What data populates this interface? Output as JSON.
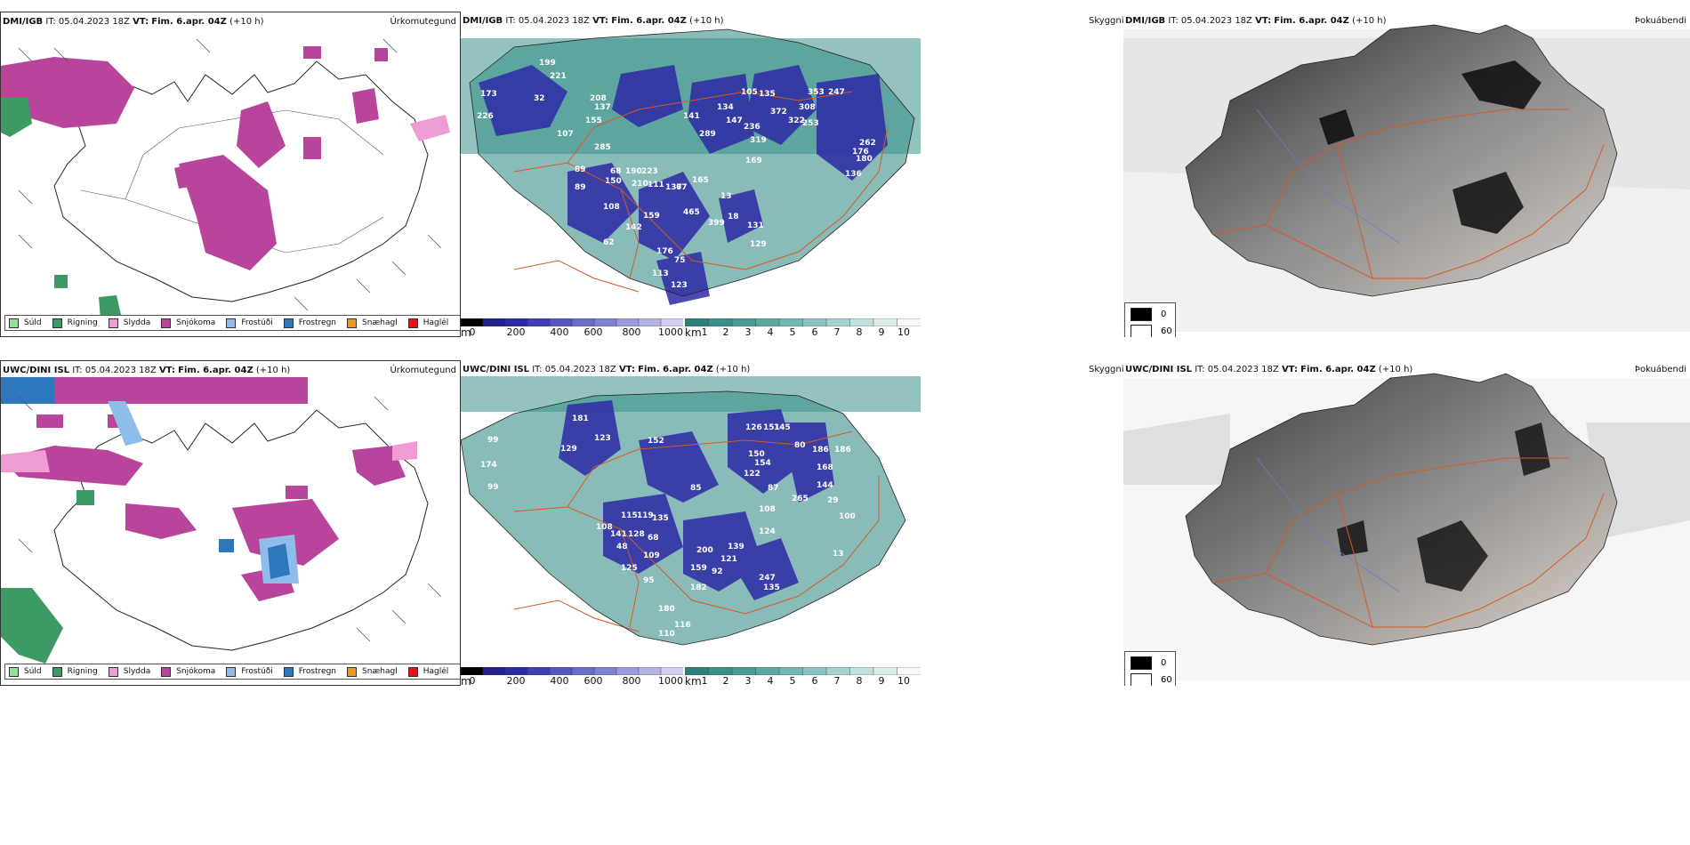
{
  "colors": {
    "snow": "#b8449c",
    "rain": "#3d9a64",
    "drizzle": "#92e39a",
    "sleet": "#ee9cd3",
    "freezing_drizzle": "#8fbde9",
    "freezing_rain": "#2f77bd",
    "snow_pellets": "#ef9920",
    "hail": "#e3151a",
    "cloud_teal": "#3a8f8a",
    "cloud_blue": "#2d2aa6",
    "road": "#d9581f",
    "coast": "#222222"
  },
  "rows": [
    {
      "model": "DMI/IGB",
      "precip": {
        "header_it": "IT: 05.04.2023 18Z",
        "header_vt_label": "VT:",
        "header_vt_value": "Fim. 6.apr. 04Z",
        "header_lead": "(+10 h)",
        "title": "Úrkomutegund"
      },
      "cloud": {
        "header_it": "IT: 05.04.2023 18Z",
        "header_vt_label": "VT:",
        "header_vt_value": "Fim. 6.apr. 04Z",
        "header_lead": "(+10 h)",
        "title": "Skyggni",
        "labels": [
          "173",
          "226",
          "221",
          "199",
          "32",
          "208",
          "137",
          "155",
          "107",
          "285",
          "89",
          "68",
          "190",
          "223",
          "150",
          "89",
          "210",
          "111",
          "137",
          "108",
          "159",
          "142",
          "465",
          "399",
          "62",
          "75",
          "176",
          "113",
          "123",
          "141",
          "289",
          "134",
          "147",
          "135",
          "105",
          "372",
          "236",
          "319",
          "169",
          "13",
          "131",
          "129",
          "18",
          "247",
          "353",
          "136",
          "262",
          "322",
          "308",
          "253",
          "176",
          "180",
          "67",
          "165"
        ]
      },
      "fog": {
        "header_it": "IT: 05.04.2023 18Z",
        "header_vt_label": "VT:",
        "header_vt_value": "Fim. 6.apr. 04Z",
        "header_lead": "(+10 h)",
        "title": "Þokuábendi"
      }
    },
    {
      "model": "UWC/DINI ISL",
      "precip": {
        "header_it": "IT: 05.04.2023 18Z",
        "header_vt_label": "VT:",
        "header_vt_value": "Fim. 6.apr. 04Z",
        "header_lead": "(+10 h)",
        "title": "Úrkomutegund"
      },
      "cloud": {
        "header_it": "IT: 05.04.2023 18Z",
        "header_vt_label": "VT:",
        "header_vt_value": "Fim. 6.apr. 04Z",
        "header_lead": "(+10 h)",
        "title": "Skyggni",
        "labels": [
          "174",
          "99",
          "181",
          "123",
          "129",
          "151",
          "126",
          "152",
          "145",
          "80",
          "85",
          "150",
          "154",
          "122",
          "87",
          "186",
          "144",
          "168",
          "115",
          "119",
          "135",
          "108",
          "141",
          "128",
          "68",
          "48",
          "109",
          "125",
          "95",
          "182",
          "159",
          "92",
          "121",
          "200",
          "139",
          "108",
          "124",
          "247",
          "135",
          "180",
          "116",
          "110",
          "29",
          "13",
          "186",
          "99",
          "265",
          "100"
        ]
      },
      "fog": {
        "header_it": "IT: 05.04.2023 18Z",
        "header_vt_label": "VT:",
        "header_vt_value": "Fim. 6.apr. 04Z",
        "header_lead": "(+10 h)",
        "title": "Þokuábendi"
      }
    }
  ],
  "precip_legend": [
    {
      "label": "Súld",
      "color": "#92e39a"
    },
    {
      "label": "Rigning",
      "color": "#3d9a64"
    },
    {
      "label": "Slydda",
      "color": "#ee9cd3"
    },
    {
      "label": "Snjókoma",
      "color": "#b8449c"
    },
    {
      "label": "Frostúði",
      "color": "#8fbde9"
    },
    {
      "label": "Frostregn",
      "color": "#2f77bd"
    },
    {
      "label": "Snæhagl",
      "color": "#ef9920"
    },
    {
      "label": "Haglél",
      "color": "#e3151a"
    }
  ],
  "cloud_base_bar": {
    "unit": "m",
    "ticks": [
      "0",
      "200",
      "400",
      "600",
      "800",
      "1000"
    ],
    "colors": [
      "#000000",
      "#24208c",
      "#2d2aa6",
      "#3f3fb5",
      "#5656c0",
      "#6a6cc8",
      "#8181d2",
      "#9b9bdb",
      "#b4b4e4",
      "#cfcff0"
    ]
  },
  "cloud_cover_bar": {
    "unit": "km",
    "ticks": [
      "1",
      "2",
      "3",
      "4",
      "5",
      "6",
      "7",
      "8",
      "9",
      "10"
    ],
    "colors": [
      "#2e7f7a",
      "#3a8f8a",
      "#4a9b96",
      "#5ea8a3",
      "#74b6b1",
      "#8cc4c0",
      "#a5d2ce",
      "#c0e0dd",
      "#dceeec",
      "#f3faf9"
    ]
  },
  "fog_legend": {
    "top": "0",
    "bottom": "60"
  }
}
